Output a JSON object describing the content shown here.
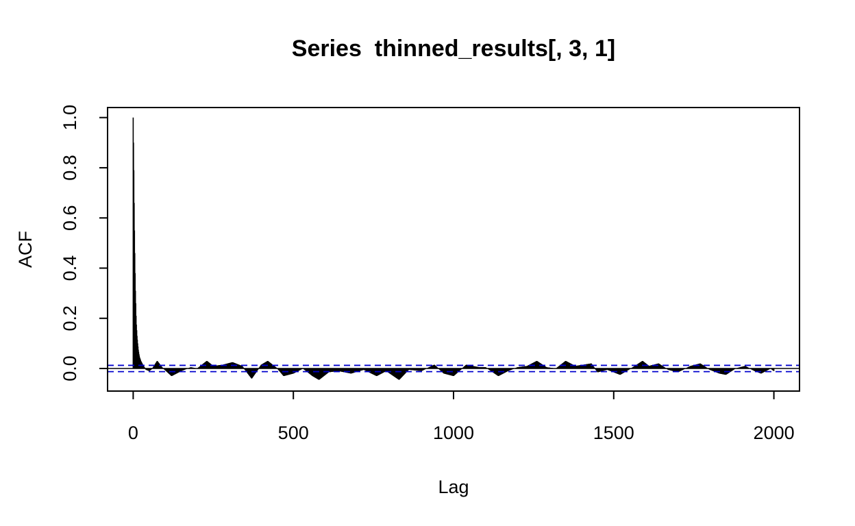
{
  "chart_data": {
    "type": "bar",
    "title": "Series  thinned_results[, 3, 1]",
    "xlabel": "Lag",
    "ylabel": "ACF",
    "xlim": [
      -80,
      2080
    ],
    "ylim": [
      -0.09,
      1.04
    ],
    "x_ticks": [
      0,
      500,
      1000,
      1500,
      2000
    ],
    "y_ticks": [
      0.0,
      0.2,
      0.4,
      0.6,
      0.8,
      1.0
    ],
    "x_tick_labels": [
      "0",
      "500",
      "1000",
      "1500",
      "2000"
    ],
    "y_tick_labels": [
      "0.0",
      "0.2",
      "0.4",
      "0.6",
      "0.8",
      "1.0"
    ],
    "grid": false,
    "lag_max": 2000,
    "confidence_bound": 0.0125,
    "acf_points": [
      [
        0,
        1.0
      ],
      [
        1,
        0.9
      ],
      [
        2,
        0.79
      ],
      [
        3,
        0.66
      ],
      [
        4,
        0.55
      ],
      [
        5,
        0.46
      ],
      [
        6,
        0.38
      ],
      [
        7,
        0.31
      ],
      [
        8,
        0.26
      ],
      [
        9,
        0.21
      ],
      [
        10,
        0.175
      ],
      [
        12,
        0.13
      ],
      [
        14,
        0.1
      ],
      [
        16,
        0.075
      ],
      [
        18,
        0.058
      ],
      [
        20,
        0.045
      ],
      [
        24,
        0.03
      ],
      [
        30,
        0.015
      ],
      [
        35,
        0.005
      ],
      [
        40,
        -0.005
      ],
      [
        50,
        -0.01
      ],
      [
        60,
        0.0
      ],
      [
        75,
        0.03
      ],
      [
        90,
        0.005
      ],
      [
        120,
        -0.03
      ],
      [
        150,
        -0.01
      ],
      [
        180,
        0.005
      ],
      [
        200,
        0.0
      ],
      [
        230,
        0.03
      ],
      [
        250,
        0.01
      ],
      [
        280,
        0.015
      ],
      [
        310,
        0.025
      ],
      [
        340,
        0.01
      ],
      [
        370,
        -0.04
      ],
      [
        400,
        0.015
      ],
      [
        420,
        0.03
      ],
      [
        450,
        0.0
      ],
      [
        470,
        -0.03
      ],
      [
        500,
        -0.02
      ],
      [
        530,
        0.0
      ],
      [
        560,
        -0.03
      ],
      [
        580,
        -0.045
      ],
      [
        610,
        -0.015
      ],
      [
        640,
        -0.01
      ],
      [
        680,
        -0.02
      ],
      [
        720,
        -0.005
      ],
      [
        760,
        -0.03
      ],
      [
        790,
        -0.01
      ],
      [
        830,
        -0.045
      ],
      [
        860,
        -0.005
      ],
      [
        900,
        -0.01
      ],
      [
        940,
        0.015
      ],
      [
        970,
        -0.02
      ],
      [
        1000,
        -0.03
      ],
      [
        1040,
        0.015
      ],
      [
        1080,
        0.005
      ],
      [
        1100,
        0.005
      ],
      [
        1140,
        -0.03
      ],
      [
        1170,
        -0.01
      ],
      [
        1200,
        0.005
      ],
      [
        1230,
        0.01
      ],
      [
        1260,
        0.03
      ],
      [
        1290,
        0.005
      ],
      [
        1320,
        0.0
      ],
      [
        1350,
        0.03
      ],
      [
        1380,
        0.01
      ],
      [
        1430,
        0.02
      ],
      [
        1450,
        -0.015
      ],
      [
        1480,
        -0.005
      ],
      [
        1520,
        -0.025
      ],
      [
        1560,
        0.005
      ],
      [
        1590,
        0.03
      ],
      [
        1610,
        0.01
      ],
      [
        1640,
        0.02
      ],
      [
        1670,
        -0.005
      ],
      [
        1700,
        -0.015
      ],
      [
        1740,
        0.01
      ],
      [
        1770,
        0.02
      ],
      [
        1800,
        -0.005
      ],
      [
        1830,
        -0.02
      ],
      [
        1850,
        -0.025
      ],
      [
        1880,
        0.0
      ],
      [
        1910,
        0.01
      ],
      [
        1940,
        -0.01
      ],
      [
        1960,
        -0.02
      ],
      [
        1990,
        0.0
      ],
      [
        2000,
        -0.01
      ]
    ]
  }
}
